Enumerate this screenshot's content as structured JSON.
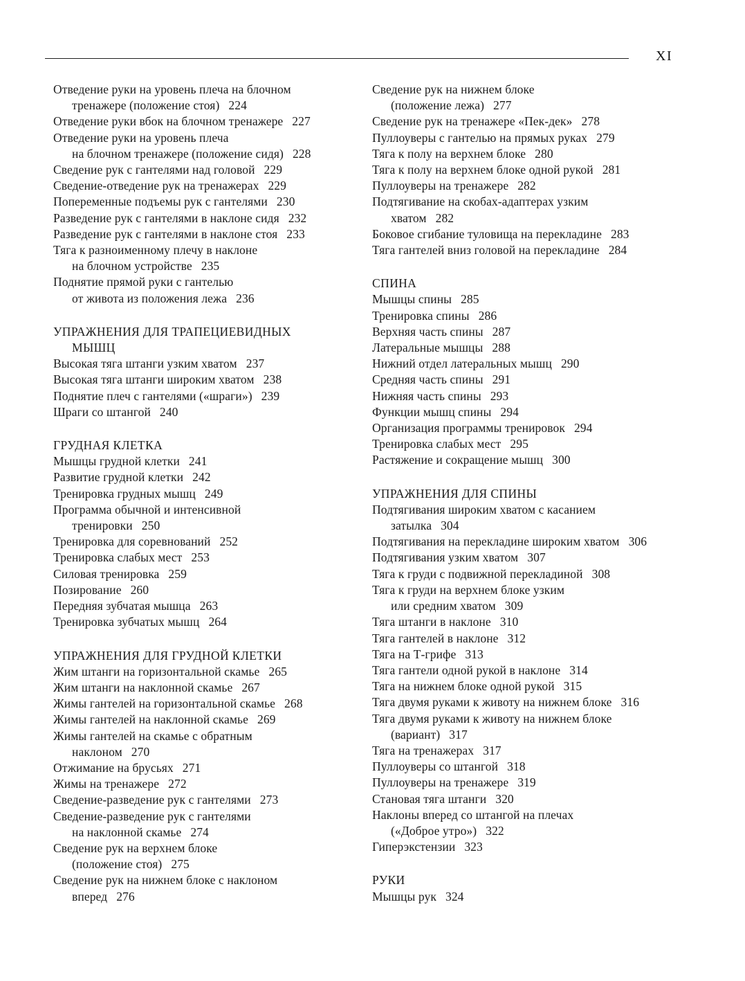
{
  "page": {
    "number": "XI"
  },
  "columns": [
    {
      "name": "left",
      "blocks": [
        {
          "type": "entry",
          "lines": [
            "Отведение руки на уровень плеча на блочном",
            "тренажере (положение стоя)"
          ],
          "page": "224"
        },
        {
          "type": "entry",
          "lines": [
            "Отведение руки вбок на блочном тренажере"
          ],
          "page": "227"
        },
        {
          "type": "entry",
          "lines": [
            "Отведение руки на уровень плеча",
            "на блочном тренажере (положение сидя)"
          ],
          "page": "228"
        },
        {
          "type": "entry",
          "lines": [
            "Сведение рук с гантелями над головой"
          ],
          "page": "229"
        },
        {
          "type": "entry",
          "lines": [
            "Сведение-отведение рук на тренажерах"
          ],
          "page": "229"
        },
        {
          "type": "entry",
          "lines": [
            "Попеременные подъемы рук с гантелями"
          ],
          "page": "230"
        },
        {
          "type": "entry",
          "lines": [
            "Разведение рук с гантелями в наклоне сидя"
          ],
          "page": "232"
        },
        {
          "type": "entry",
          "lines": [
            "Разведение рук с гантелями в наклоне стоя"
          ],
          "page": "233"
        },
        {
          "type": "entry",
          "lines": [
            "Тяга к разноименному плечу в наклоне",
            "на блочном устройстве"
          ],
          "page": "235"
        },
        {
          "type": "entry",
          "lines": [
            "Поднятие прямой руки с гантелью",
            "от живота из положения лежа"
          ],
          "page": "236"
        },
        {
          "type": "section",
          "lines": [
            "УПРАЖНЕНИЯ ДЛЯ ТРАПЕЦИЕВИДНЫХ",
            "МЫШЦ"
          ]
        },
        {
          "type": "entry",
          "lines": [
            "Высокая тяга штанги узким хватом"
          ],
          "page": "237"
        },
        {
          "type": "entry",
          "lines": [
            "Высокая тяга штанги широким хватом"
          ],
          "page": "238"
        },
        {
          "type": "entry",
          "lines": [
            "Поднятие плеч с гантелями («шраги»)"
          ],
          "page": "239"
        },
        {
          "type": "entry",
          "lines": [
            "Шраги со штангой"
          ],
          "page": "240"
        },
        {
          "type": "section",
          "lines": [
            "ГРУДНАЯ КЛЕТКА"
          ]
        },
        {
          "type": "entry",
          "lines": [
            "Мышцы грудной клетки"
          ],
          "page": "241"
        },
        {
          "type": "entry",
          "lines": [
            "Развитие грудной клетки"
          ],
          "page": "242"
        },
        {
          "type": "entry",
          "lines": [
            "Тренировка грудных мышц"
          ],
          "page": "249"
        },
        {
          "type": "entry",
          "lines": [
            "Программа обычной и интенсивной",
            "тренировки"
          ],
          "page": "250"
        },
        {
          "type": "entry",
          "lines": [
            "Тренировка для соревнований"
          ],
          "page": "252"
        },
        {
          "type": "entry",
          "lines": [
            "Тренировка слабых мест"
          ],
          "page": "253"
        },
        {
          "type": "entry",
          "lines": [
            "Силовая тренировка"
          ],
          "page": "259"
        },
        {
          "type": "entry",
          "lines": [
            "Позирование"
          ],
          "page": "260"
        },
        {
          "type": "entry",
          "lines": [
            "Передняя зубчатая мышца"
          ],
          "page": "263"
        },
        {
          "type": "entry",
          "lines": [
            "Тренировка зубчатых мышц"
          ],
          "page": "264"
        },
        {
          "type": "section",
          "lines": [
            "УПРАЖНЕНИЯ ДЛЯ ГРУДНОЙ КЛЕТКИ"
          ]
        },
        {
          "type": "entry",
          "lines": [
            "Жим штанги на горизонтальной скамье"
          ],
          "page": "265"
        },
        {
          "type": "entry",
          "lines": [
            "Жим штанги на наклонной скамье"
          ],
          "page": "267"
        },
        {
          "type": "entry",
          "lines": [
            "Жимы гантелей на горизонтальной скамье"
          ],
          "page": "268"
        },
        {
          "type": "entry",
          "lines": [
            "Жимы гантелей на наклонной скамье"
          ],
          "page": "269"
        },
        {
          "type": "entry",
          "lines": [
            "Жимы гантелей на скамье с обратным",
            "наклоном"
          ],
          "page": "270"
        },
        {
          "type": "entry",
          "lines": [
            "Отжимание на брусьях"
          ],
          "page": "271"
        },
        {
          "type": "entry",
          "lines": [
            "Жимы на тренажере"
          ],
          "page": "272"
        },
        {
          "type": "entry",
          "lines": [
            "Сведение-разведение рук с гантелями"
          ],
          "page": "273"
        },
        {
          "type": "entry",
          "lines": [
            "Сведение-разведение рук с гантелями",
            "на наклонной скамье"
          ],
          "page": "274"
        },
        {
          "type": "entry",
          "lines": [
            "Сведение рук на верхнем блоке",
            "(положение стоя)"
          ],
          "page": "275"
        },
        {
          "type": "entry",
          "lines": [
            "Сведение рук на нижнем блоке с наклоном",
            "вперед"
          ],
          "page": "276"
        }
      ]
    },
    {
      "name": "right",
      "blocks": [
        {
          "type": "entry",
          "lines": [
            "Сведение рук на нижнем блоке",
            "(положение лежа)"
          ],
          "page": "277"
        },
        {
          "type": "entry",
          "lines": [
            "Сведение рук на тренажере «Пек-дек»"
          ],
          "page": "278"
        },
        {
          "type": "entry",
          "lines": [
            "Пуллоуверы с гантелью на прямых руках"
          ],
          "page": "279"
        },
        {
          "type": "entry",
          "lines": [
            "Тяга к полу на верхнем блоке"
          ],
          "page": "280"
        },
        {
          "type": "entry",
          "lines": [
            "Тяга к полу на верхнем блоке одной рукой"
          ],
          "page": "281"
        },
        {
          "type": "entry",
          "lines": [
            "Пуллоуверы на тренажере"
          ],
          "page": "282"
        },
        {
          "type": "entry",
          "lines": [
            "Подтягивание на скобах-адаптерах узким",
            "хватом"
          ],
          "page": "282"
        },
        {
          "type": "entry",
          "lines": [
            "Боковое сгибание туловища на перекладине"
          ],
          "page": "283"
        },
        {
          "type": "entry",
          "lines": [
            "Тяга гантелей вниз головой на перекладине"
          ],
          "page": "284"
        },
        {
          "type": "section",
          "lines": [
            "СПИНА"
          ]
        },
        {
          "type": "entry",
          "lines": [
            "Мышцы спины"
          ],
          "page": "285"
        },
        {
          "type": "entry",
          "lines": [
            "Тренировка спины"
          ],
          "page": "286"
        },
        {
          "type": "entry",
          "lines": [
            "Верхняя часть спины"
          ],
          "page": "287"
        },
        {
          "type": "entry",
          "lines": [
            "Латеральные мышцы"
          ],
          "page": "288"
        },
        {
          "type": "entry",
          "lines": [
            "Нижний отдел латеральных мышц"
          ],
          "page": "290"
        },
        {
          "type": "entry",
          "lines": [
            "Средняя часть спины"
          ],
          "page": "291"
        },
        {
          "type": "entry",
          "lines": [
            "Нижняя часть спины"
          ],
          "page": "293"
        },
        {
          "type": "entry",
          "lines": [
            "Функции мышц спины"
          ],
          "page": "294"
        },
        {
          "type": "entry",
          "lines": [
            "Организация программы тренировок"
          ],
          "page": "294"
        },
        {
          "type": "entry",
          "lines": [
            "Тренировка слабых мест"
          ],
          "page": "295"
        },
        {
          "type": "entry",
          "lines": [
            "Растяжение и сокращение мышц"
          ],
          "page": "300"
        },
        {
          "type": "section",
          "lines": [
            "УПРАЖНЕНИЯ ДЛЯ СПИНЫ"
          ]
        },
        {
          "type": "entry",
          "lines": [
            "Подтягивания широким хватом с касанием",
            "затылка"
          ],
          "page": "304"
        },
        {
          "type": "entry",
          "lines": [
            "Подтягивания на перекладине широким хватом"
          ],
          "page": "306"
        },
        {
          "type": "entry",
          "lines": [
            "Подтягивания узким хватом"
          ],
          "page": "307"
        },
        {
          "type": "entry",
          "lines": [
            "Тяга к груди с подвижной перекладиной"
          ],
          "page": "308"
        },
        {
          "type": "entry",
          "lines": [
            "Тяга к груди на верхнем блоке узким",
            "или средним хватом"
          ],
          "page": "309"
        },
        {
          "type": "entry",
          "lines": [
            "Тяга штанги в наклоне"
          ],
          "page": "310"
        },
        {
          "type": "entry",
          "lines": [
            "Тяга гантелей в наклоне"
          ],
          "page": "312"
        },
        {
          "type": "entry",
          "lines": [
            "Тяга на Т-грифе"
          ],
          "page": "313"
        },
        {
          "type": "entry",
          "lines": [
            "Тяга гантели одной рукой в наклоне"
          ],
          "page": "314"
        },
        {
          "type": "entry",
          "lines": [
            "Тяга на нижнем блоке одной рукой"
          ],
          "page": "315"
        },
        {
          "type": "entry",
          "lines": [
            "Тяга двумя руками к животу на нижнем блоке"
          ],
          "page": "316"
        },
        {
          "type": "entry",
          "lines": [
            "Тяга двумя руками к животу на нижнем блоке",
            "(вариант)"
          ],
          "page": "317"
        },
        {
          "type": "entry",
          "lines": [
            "Тяга на тренажерах"
          ],
          "page": "317"
        },
        {
          "type": "entry",
          "lines": [
            "Пуллоуверы со штангой"
          ],
          "page": "318"
        },
        {
          "type": "entry",
          "lines": [
            "Пуллоуверы на тренажере"
          ],
          "page": "319"
        },
        {
          "type": "entry",
          "lines": [
            "Становая тяга штанги"
          ],
          "page": "320"
        },
        {
          "type": "entry",
          "lines": [
            "Наклоны вперед со штангой на плечах",
            "(«Доброе утро»)"
          ],
          "page": "322"
        },
        {
          "type": "entry",
          "lines": [
            "Гиперэкстензии"
          ],
          "page": "323"
        },
        {
          "type": "section",
          "lines": [
            "РУКИ"
          ]
        },
        {
          "type": "entry",
          "lines": [
            "Мышцы рук"
          ],
          "page": "324"
        }
      ]
    }
  ]
}
